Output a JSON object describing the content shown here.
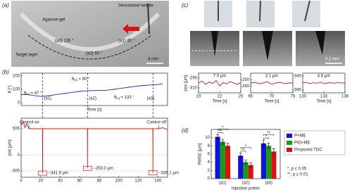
{
  "panel_labels": [
    "(a)",
    "(b)",
    "(c)",
    "(d)"
  ],
  "photo_a": {
    "labels": [
      "Agarose-gel",
      "Sensorized needle",
      "Target layer",
      "(a3) 135 °",
      "(a2) 90 °",
      "(a1) 45 °",
      "4 mm"
    ]
  },
  "photo_c": {
    "scale": "0.2 mm"
  },
  "chart_data": [
    {
      "type": "line",
      "ylabel": "θ [°]",
      "xlabel": "Time [s]",
      "x": [
        0,
        5,
        10,
        15,
        20,
        22,
        25,
        30,
        35,
        40,
        45,
        50,
        55,
        60,
        65,
        68,
        70,
        75,
        80,
        85,
        90,
        95,
        100,
        105,
        110,
        115,
        120,
        125,
        130,
        135,
        140,
        145
      ],
      "values": [
        60,
        62,
        58,
        52,
        48,
        47,
        50,
        55,
        60,
        65,
        70,
        75,
        80,
        85,
        88,
        90,
        90,
        91,
        92,
        92,
        95,
        100,
        105,
        110,
        115,
        120,
        125,
        128,
        131,
        133,
        136,
        140
      ],
      "color": "#1f1fd0",
      "xlim": [
        0,
        150
      ],
      "ylim": [
        -20,
        220
      ],
      "yticks": [
        0,
        100,
        200
      ],
      "injection_times": [
        22,
        68,
        135
      ],
      "injection_labels": [
        "(a1)",
        "(a2)",
        "(a3)"
      ],
      "annotations": [
        {
          "symbol": "θ",
          "subscript": "inj",
          "text": " = 47 °"
        },
        {
          "symbol": "θ",
          "subscript": "inj",
          "text": " = 90 °"
        },
        {
          "symbol": "θ",
          "subscript": "inj",
          "text": " = 133 °"
        }
      ]
    },
    {
      "type": "line",
      "ylabel": "pos [μm]",
      "x": [
        0,
        2,
        4,
        6,
        8,
        21.9,
        22,
        22.1,
        67.9,
        68,
        68.1,
        134.9,
        135,
        135.1,
        141,
        145,
        150
      ],
      "values": [
        560,
        640,
        520,
        600,
        500,
        500,
        -341.8,
        500,
        500,
        -250.0,
        500,
        500,
        -336.1,
        500,
        500,
        520,
        480
      ],
      "value_labels": [
        null,
        null,
        null,
        null,
        null,
        null,
        "−341.8 μm",
        null,
        null,
        "−250.0 μm",
        null,
        null,
        "−336.1 μm",
        null,
        null,
        null,
        null
      ],
      "color": "#e01010",
      "xlim": [
        0,
        150
      ],
      "ylim": [
        -420,
        700
      ],
      "xticks": [
        0,
        20,
        40,
        60,
        80,
        100,
        120,
        140
      ],
      "yticks": [
        -300,
        0,
        500
      ],
      "grid": true,
      "events": [
        {
          "x": 8,
          "label": "Control on"
        },
        {
          "x": 141,
          "label": "Control off"
        }
      ]
    },
    {
      "type": "line",
      "title": "7.0 μm",
      "ylabel": "pos [μm]",
      "xlabel": "Time [s]",
      "x": [
        19,
        19.5,
        20,
        20.5,
        21,
        21.5,
        22,
        22.5,
        23,
        23.5,
        24,
        24.5,
        25
      ],
      "values": [
        -300,
        -296,
        -303,
        -298,
        -301,
        -295,
        -306,
        -299,
        -302,
        -297,
        -300,
        -303,
        -299
      ],
      "color": "#e01010",
      "xlim": [
        19,
        25
      ],
      "ylim": [
        -320,
        -280
      ],
      "xticks": [
        19,
        22,
        25
      ],
      "yticks": [
        -310,
        -290
      ]
    },
    {
      "type": "line",
      "title": "3.1 μm",
      "xlabel": "Time [s]",
      "x": [
        65,
        66,
        67,
        68,
        69,
        70,
        71,
        72,
        73,
        74,
        75
      ],
      "values": [
        -255,
        -254,
        -256,
        -255,
        -253,
        -257,
        -255,
        -254,
        -256,
        -255,
        -255
      ],
      "color": "#e01010",
      "xlim": [
        65,
        75
      ],
      "ylim": [
        -270,
        -240
      ],
      "xticks": [
        65,
        70,
        75
      ],
      "yticks": [
        -260,
        -250
      ]
    },
    {
      "type": "line",
      "title": "4.8 μm",
      "xlabel": "Time [s]",
      "x": [
        130,
        130.5,
        131,
        131.5,
        132,
        132.5,
        133,
        133.5,
        134,
        134.5,
        135,
        135.5,
        136
      ],
      "values": [
        -365,
        -363,
        -367,
        -364,
        -366,
        -362,
        -367,
        -365,
        -364,
        -366,
        -363,
        -365,
        -365
      ],
      "color": "#e01010",
      "xlim": [
        130,
        136
      ],
      "ylim": [
        -400,
        -330
      ],
      "xticks": [
        130,
        133,
        136
      ],
      "yticks": [
        -390,
        -340
      ]
    },
    {
      "type": "bar",
      "ylabel": "RMSE [μm]",
      "xlabel": "Injection points",
      "categories": [
        "(a1)",
        "(a2)",
        "(a3)"
      ],
      "series": [
        {
          "name": "P+ME",
          "color": "#1010e0",
          "values": [
            10.2,
            5.6,
            8.6
          ],
          "errors": [
            0.5,
            0.6,
            0.8
          ]
        },
        {
          "name": "PID+ME",
          "color": "#10a010",
          "values": [
            9.0,
            4.0,
            8.0
          ],
          "errors": [
            0.6,
            0.5,
            0.7
          ]
        },
        {
          "name": "Proposed TDC",
          "color": "#e01010",
          "values": [
            8.0,
            3.3,
            6.6
          ],
          "errors": [
            0.6,
            0.5,
            0.7
          ]
        }
      ],
      "ylim": [
        0,
        12
      ],
      "yticks": [
        0,
        2,
        4,
        6,
        8,
        10
      ],
      "significance": [
        [
          "**",
          "*"
        ],
        [
          "**",
          "*"
        ],
        [
          "*",
          "**"
        ]
      ],
      "notes": [
        "*, p ≤ 0.05",
        "**, p ≤ 0.01"
      ]
    }
  ]
}
